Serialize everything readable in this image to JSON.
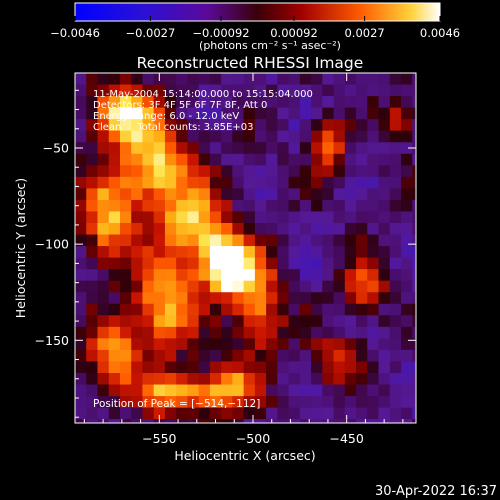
{
  "chart_data": {
    "type": "heatmap",
    "title": "Reconstructed RHESSI Image",
    "xlabel": "Heliocentric X (arcsec)",
    "ylabel": "Heliocentric Y (arcsec)",
    "xlim": [
      -595,
      -413
    ],
    "ylim": [
      -193,
      -11
    ],
    "x_ticks": [
      {
        "value": -550,
        "label": "−550"
      },
      {
        "value": -500,
        "label": "−500"
      },
      {
        "value": -450,
        "label": "−450"
      }
    ],
    "y_ticks": [
      {
        "value": -50,
        "label": "−50"
      },
      {
        "value": -100,
        "label": "−100"
      },
      {
        "value": -150,
        "label": "−150"
      }
    ],
    "colorbar": {
      "min": -0.0046,
      "max": 0.0046,
      "ticks": [
        {
          "value": -0.0046,
          "label": "−0.0046"
        },
        {
          "value": -0.0027,
          "label": "−0.0027"
        },
        {
          "value": -0.00092,
          "label": "−0.00092"
        },
        {
          "value": 0.00092,
          "label": "0.00092"
        },
        {
          "value": 0.0027,
          "label": "0.0027"
        },
        {
          "value": 0.0046,
          "label": "0.0046"
        }
      ],
      "unit_label": "(photons cm⁻² s⁻¹ asec⁻²)"
    },
    "annotations": [
      "11-May-2004 15:14:00.000 to 15:15:04.000",
      "Detectors: 3F 4F 5F 6F 7F 8F, Att 0",
      "Energy Range: 6.0 - 12.0 keV",
      "Clean     Total counts: 3.85E+03"
    ],
    "peak_label": "Position of Peak = [−514,−112]",
    "peak": {
      "x": -514,
      "y": -112
    },
    "sources": [
      {
        "x": -514,
        "y": -112,
        "amp": 0.0046,
        "sx": 9,
        "sy": 11
      },
      {
        "x": -530,
        "y": -92,
        "amp": 0.0026,
        "sx": 13,
        "sy": 15
      },
      {
        "x": -553,
        "y": -60,
        "amp": 0.0031,
        "sx": 14,
        "sy": 18
      },
      {
        "x": -571,
        "y": -32,
        "amp": 0.003,
        "sx": 11,
        "sy": 11
      },
      {
        "x": -578,
        "y": -88,
        "amp": 0.0024,
        "sx": 9,
        "sy": 16
      },
      {
        "x": -548,
        "y": -133,
        "amp": 0.0028,
        "sx": 12,
        "sy": 17
      },
      {
        "x": -575,
        "y": -158,
        "amp": 0.0022,
        "sx": 10,
        "sy": 12
      },
      {
        "x": -540,
        "y": -178,
        "amp": 0.0025,
        "sx": 16,
        "sy": 8
      },
      {
        "x": -512,
        "y": -175,
        "amp": 0.0018,
        "sx": 11,
        "sy": 8
      },
      {
        "x": -497,
        "y": -132,
        "amp": 0.002,
        "sx": 9,
        "sy": 18
      },
      {
        "x": -460,
        "y": -50,
        "amp": 0.0014,
        "sx": 7,
        "sy": 10
      },
      {
        "x": -440,
        "y": -122,
        "amp": 0.0013,
        "sx": 8,
        "sy": 10
      },
      {
        "x": -455,
        "y": -160,
        "amp": 0.0012,
        "sx": 9,
        "sy": 9
      },
      {
        "x": -420,
        "y": -35,
        "amp": 0.001,
        "sx": 6,
        "sy": 8
      }
    ],
    "negative_level": -0.0017
  },
  "footer": {
    "date_stamp": "30-Apr-2022 16:37"
  },
  "colors": {
    "background": "#000000",
    "foreground": "#ffffff",
    "colormap_stops": [
      "#0000ff",
      "#4a0a9a",
      "#500000",
      "#aa0000",
      "#ff5a00",
      "#ffd23a",
      "#ffffff"
    ]
  }
}
